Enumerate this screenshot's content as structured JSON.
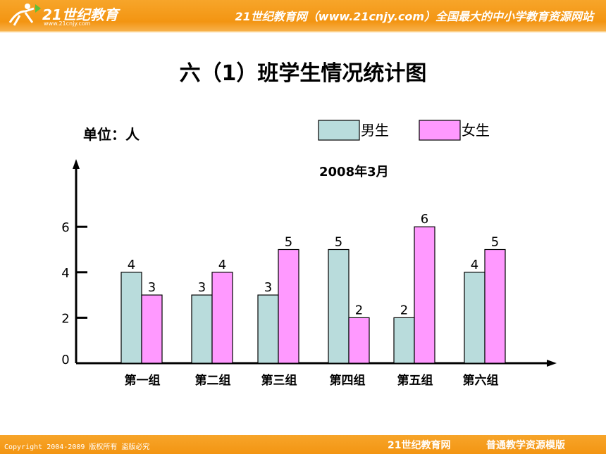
{
  "header": {
    "logo_text": "21世纪教育",
    "logo_url": "www.21cnjy.com",
    "slogan": "21世纪教育网（www.21cnjy.com）全国最大的中小学教育资源网站"
  },
  "footer": {
    "copyright": "Copyright 2004-2009 版权所有 盗版必究",
    "brand": "21世纪教育网",
    "tag": "普通教学资源模版"
  },
  "colors": {
    "banner": "#f39512",
    "boys": "#b9dcdc",
    "girls": "#ff99ff",
    "axis": "#000000"
  },
  "chart_data": {
    "type": "bar",
    "title": "六（1）班学生情况统计图",
    "unit_label": "单位：人",
    "date_label": "2008年3月",
    "categories": [
      "第一组",
      "第二组",
      "第三组",
      "第四组",
      "第五组",
      "第六组"
    ],
    "series": [
      {
        "name": "男生",
        "values": [
          4,
          3,
          3,
          5,
          2,
          4
        ]
      },
      {
        "name": "女生",
        "values": [
          3,
          4,
          5,
          2,
          6,
          5
        ]
      }
    ],
    "y_ticks": [
      "0",
      "2",
      "4",
      "6"
    ],
    "ylim": [
      0,
      6
    ],
    "legend": "top-right",
    "grid": false
  }
}
